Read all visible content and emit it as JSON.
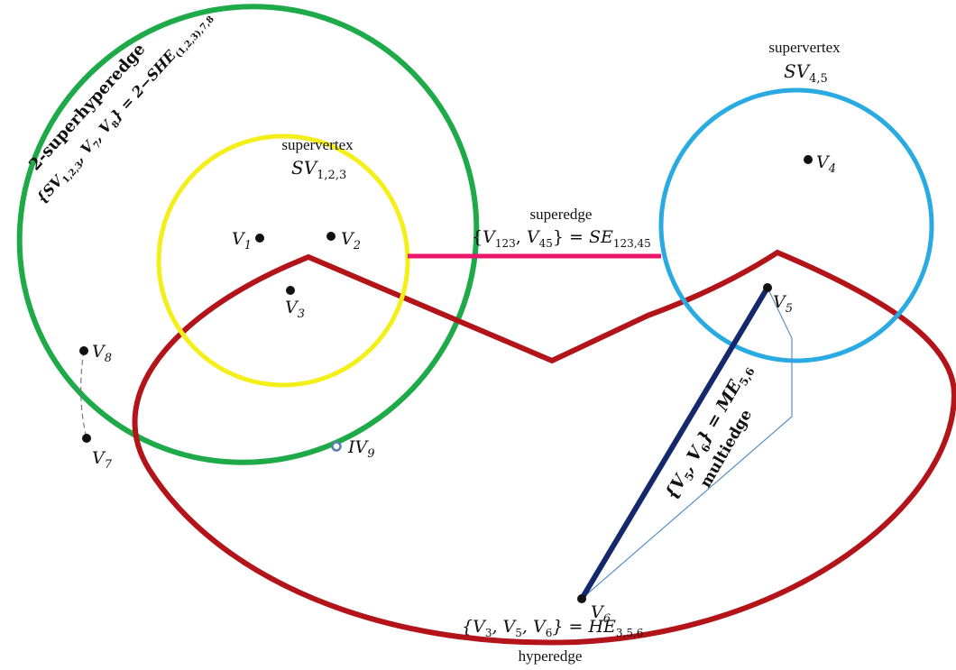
{
  "colors": {
    "superhyperedge": "#1faa4a",
    "supervertex_a": "#f4ef1a",
    "supervertex_b": "#29abe2",
    "hyperedge": "#b3141a",
    "superedge": "#e8176b",
    "multiedge": "#14286b",
    "multiedge_thin": "#5b8fc7",
    "vertex": "#111111",
    "isolated_vertex": "#5a7fa8"
  },
  "vertices": {
    "v1": "V",
    "v1_sub": "1",
    "v2": "V",
    "v2_sub": "2",
    "v3": "V",
    "v3_sub": "3",
    "v4": "V",
    "v4_sub": "4",
    "v5": "V",
    "v5_sub": "5",
    "v6": "V",
    "v6_sub": "6",
    "v7": "V",
    "v7_sub": "7",
    "v8": "V",
    "v8_sub": "8",
    "iv9": "IV",
    "iv9_sub": "9"
  },
  "supervertex_123": {
    "word": "supervertex",
    "symbol": "SV",
    "sub": "1,2,3"
  },
  "supervertex_45": {
    "word": "supervertex",
    "symbol": "SV",
    "sub": "4,5"
  },
  "superedge": {
    "word": "superedge",
    "set_open": "{",
    "set_a": "V",
    "set_a_sub": "123",
    "set_sep": ", ",
    "set_b": "V",
    "set_b_sub": "45",
    "set_close": "} = ",
    "symbol": "SE",
    "sub": "123,45"
  },
  "hyperedge": {
    "word": "hyperedge",
    "set_text": "{V",
    "s3": "3",
    "comma1": ", V",
    "s5": "5",
    "comma2": ", V",
    "s6": "6",
    "close": "} = HE",
    "sub": "3,5,6"
  },
  "multiedge": {
    "word": "multiedge",
    "set_text": "{V",
    "s5": "5",
    "comma": ", V",
    "s6": "6",
    "close": "} = ME",
    "sub": "5,6"
  },
  "superhyperedge": {
    "word": "2-superhyperedge",
    "set_text": "{SV",
    "s123": "1,2,3",
    "comma1": ", V",
    "s7": "7",
    "comma2": ", V",
    "s8": "8",
    "close": "} = 2−SHE",
    "sub": "(1,2,3),7,8"
  }
}
